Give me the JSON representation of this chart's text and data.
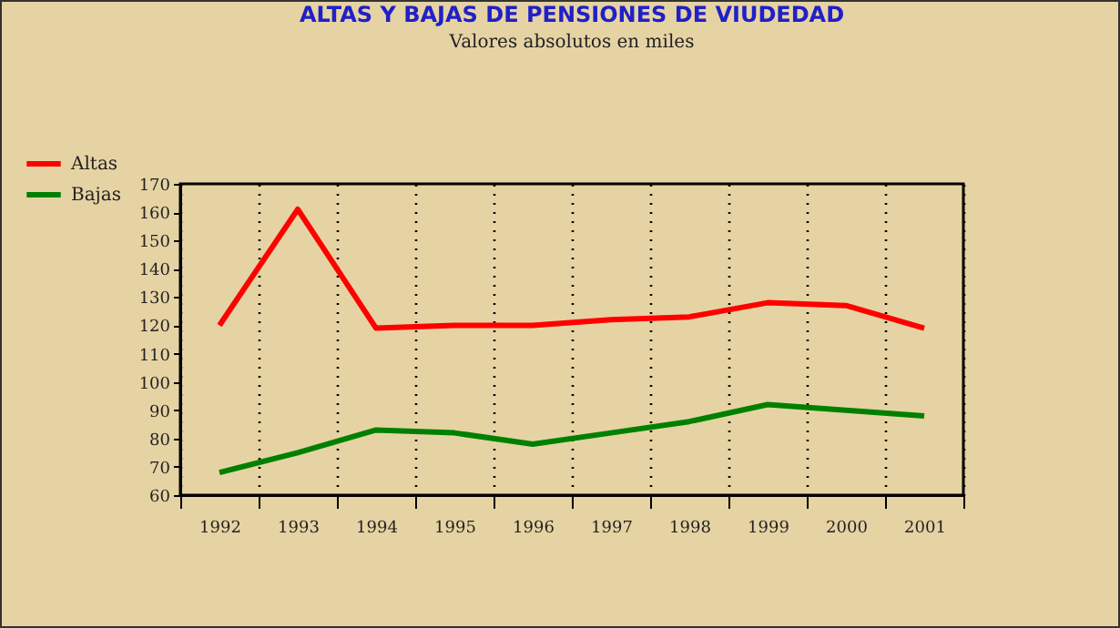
{
  "chart_data": {
    "type": "line",
    "title": "ALTAS Y BAJAS DE PENSIONES DE VIUDEDAD",
    "subtitle": "Valores absolutos en miles",
    "categories": [
      "1992",
      "1993",
      "1994",
      "1995",
      "1996",
      "1997",
      "1998",
      "1999",
      "2000",
      "2001"
    ],
    "series": [
      {
        "name": "Altas",
        "color": "#ff0000",
        "values": [
          120,
          161,
          119,
          120,
          120,
          122,
          123,
          128,
          127,
          119
        ]
      },
      {
        "name": "Bajas",
        "color": "#008000",
        "values": [
          68,
          75,
          83,
          82,
          78,
          82,
          86,
          92,
          90,
          88
        ]
      }
    ],
    "ylim": [
      60,
      170
    ],
    "yticks": [
      60,
      70,
      80,
      90,
      100,
      110,
      120,
      130,
      140,
      150,
      160,
      170
    ],
    "grid": "x",
    "legend": "top left",
    "marker": "none",
    "line_style": "solid"
  }
}
